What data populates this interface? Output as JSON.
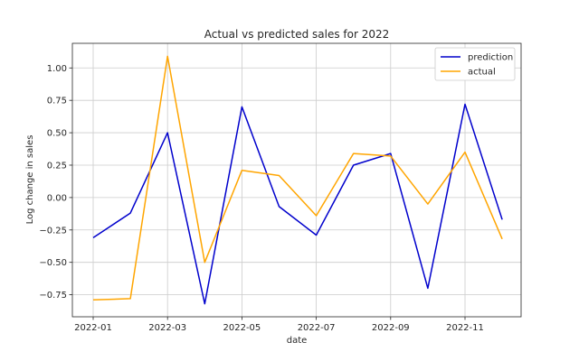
{
  "chart_data": {
    "type": "line",
    "title": "Actual vs predicted sales for 2022",
    "xlabel": "date",
    "ylabel": "Log change in sales",
    "x": [
      "2022-01",
      "2022-02",
      "2022-03",
      "2022-04",
      "2022-05",
      "2022-06",
      "2022-07",
      "2022-08",
      "2022-09",
      "2022-10",
      "2022-11",
      "2022-12"
    ],
    "x_tick_labels": [
      "2022-01",
      "2022-03",
      "2022-05",
      "2022-07",
      "2022-09",
      "2022-11"
    ],
    "y_tick_values": [
      -0.75,
      -0.5,
      -0.25,
      0,
      0.25,
      0.5,
      0.75,
      1.0
    ],
    "y_tick_labels": [
      "−0.75",
      "−0.50",
      "−0.25",
      "0.00",
      "0.25",
      "0.50",
      "0.75",
      "1.00"
    ],
    "ylim": [
      -0.92,
      1.19
    ],
    "grid": true,
    "legend_position": "top-right",
    "series": [
      {
        "name": "prediction",
        "color": "#0000cc",
        "values": [
          -0.31,
          -0.12,
          0.5,
          -0.82,
          0.7,
          -0.07,
          -0.29,
          0.25,
          0.34,
          -0.7,
          0.72,
          -0.17
        ]
      },
      {
        "name": "actual",
        "color": "#ffa500",
        "values": [
          -0.79,
          -0.78,
          1.09,
          -0.5,
          0.21,
          0.17,
          -0.14,
          0.34,
          0.32,
          -0.05,
          0.35,
          -0.32
        ]
      }
    ]
  }
}
